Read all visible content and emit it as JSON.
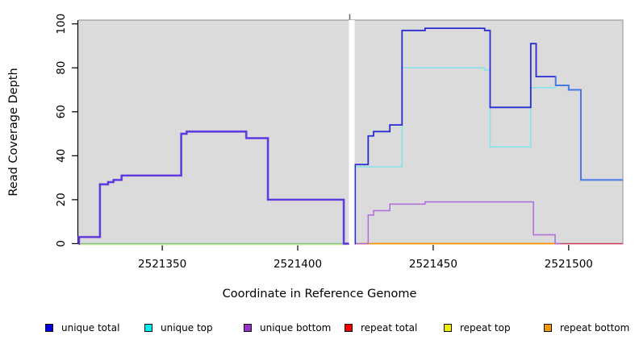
{
  "chart_data": {
    "type": "step-line",
    "title": "",
    "xlabel": "Coordinate in Reference Genome",
    "ylabel": "Read Coverage Depth",
    "xlim": [
      2521319,
      2521520
    ],
    "ylim": [
      -0.2,
      101.7
    ],
    "x_ticks": [
      2521350,
      2521400,
      2521450,
      2521500
    ],
    "y_ticks": [
      0,
      20,
      40,
      60,
      80,
      100
    ],
    "panel_bg": "#DBDBDB",
    "panel_border": "#ABABAB",
    "grid": "off",
    "legend_position": "bottom",
    "gap": {
      "x_start": 2521418.9,
      "x_end": 2521421.0,
      "fill": "#FFFFFF",
      "tick_color": "#6E6E6E"
    },
    "series": [
      {
        "name": "repeat top",
        "legend_color": "#EEEE00",
        "segments": [
          {
            "stroke": "#EFE9B8",
            "width": 1.5,
            "end": 2521419,
            "points": [
              [
                2521319,
                -0.5
              ]
            ]
          }
        ]
      },
      {
        "name": "repeat total",
        "legend_color": "#EE0000",
        "segments": [
          {
            "stroke": "#C8385C",
            "width": 1.5,
            "end": 2521520,
            "points": [
              [
                2521495,
                0
              ]
            ]
          }
        ]
      },
      {
        "name": "repeat bottom",
        "legend_color": "#EE9900",
        "segments": [
          {
            "stroke": "#F59708",
            "width": 1.8,
            "end": 2521495,
            "points": [
              [
                2521421,
                0
              ]
            ]
          }
        ]
      },
      {
        "name": "unique top",
        "legend_color": "#00EEEE",
        "segments": [
          {
            "stroke": "#7CC87C",
            "width": 1.5,
            "end": 2521419,
            "points": [
              [
                2521319,
                0
              ]
            ]
          },
          {
            "stroke": "#7FE3E8",
            "width": 1.5,
            "end": 2521495.5,
            "points": [
              [
                2521421,
                35
              ],
              [
                2521438.5,
                80
              ],
              [
                2521469,
                79
              ],
              [
                2521471,
                44
              ],
              [
                2521486,
                71
              ]
            ]
          }
        ]
      },
      {
        "name": "unique bottom",
        "legend_color": "#9932CC",
        "segments": [
          {
            "stroke": "#A95FD9",
            "width": 2.8,
            "end": 2521419,
            "points": [
              [
                2521319,
                0
              ],
              [
                2521319.3,
                3
              ],
              [
                2521327,
                27
              ],
              [
                2521330,
                28
              ],
              [
                2521332,
                29
              ],
              [
                2521335,
                31
              ],
              [
                2521357,
                50
              ],
              [
                2521359,
                51
              ],
              [
                2521381,
                48
              ],
              [
                2521389,
                20
              ],
              [
                2521417,
                0
              ]
            ]
          },
          {
            "stroke": "#B16BDC",
            "width": 1.5,
            "end": 2521497,
            "points": [
              [
                2521421,
                0
              ],
              [
                2521426,
                13
              ],
              [
                2521428,
                15
              ],
              [
                2521434,
                18
              ],
              [
                2521447,
                19
              ],
              [
                2521487,
                4
              ],
              [
                2521495,
                0
              ]
            ]
          }
        ]
      },
      {
        "name": "unique total",
        "legend_color": "#0000EE",
        "segments": [
          {
            "stroke": "#4A3CDF",
            "width": 1.8,
            "end": 2521419,
            "points": [
              [
                2521319,
                0
              ],
              [
                2521319.3,
                3
              ],
              [
                2521327,
                27
              ],
              [
                2521330,
                28
              ],
              [
                2521332,
                29
              ],
              [
                2521335,
                31
              ],
              [
                2521357,
                50
              ],
              [
                2521359,
                51
              ],
              [
                2521381,
                48
              ],
              [
                2521389,
                20
              ],
              [
                2521417,
                0
              ]
            ]
          },
          {
            "stroke": "#2B2BD3",
            "width": 1.8,
            "end": 2521495,
            "points": [
              [
                2521421,
                0
              ],
              [
                2521421.2,
                36
              ],
              [
                2521426,
                49
              ],
              [
                2521428,
                51
              ],
              [
                2521434,
                54
              ],
              [
                2521438.5,
                97
              ],
              [
                2521447,
                98
              ],
              [
                2521469,
                97
              ],
              [
                2521471,
                62
              ],
              [
                2521486,
                91
              ],
              [
                2521488,
                76
              ]
            ]
          },
          {
            "stroke": "#4678E8",
            "width": 2.0,
            "end": 2521520,
            "points": [
              [
                2521495,
                76
              ],
              [
                2521495.2,
                72
              ],
              [
                2521500,
                70
              ],
              [
                2521504.5,
                29
              ]
            ]
          }
        ]
      }
    ]
  },
  "legend": {
    "items": [
      {
        "label": "unique total",
        "color": "#0000EE"
      },
      {
        "label": "unique top",
        "color": "#00EEEE"
      },
      {
        "label": "unique bottom",
        "color": "#9932CC"
      },
      {
        "label": "repeat total",
        "color": "#EE0000"
      },
      {
        "label": "repeat top",
        "color": "#EEEE00"
      },
      {
        "label": "repeat bottom",
        "color": "#EE9900"
      }
    ]
  },
  "axes": {
    "x_title": "Coordinate in Reference Genome",
    "y_title": "Read Coverage Depth"
  }
}
